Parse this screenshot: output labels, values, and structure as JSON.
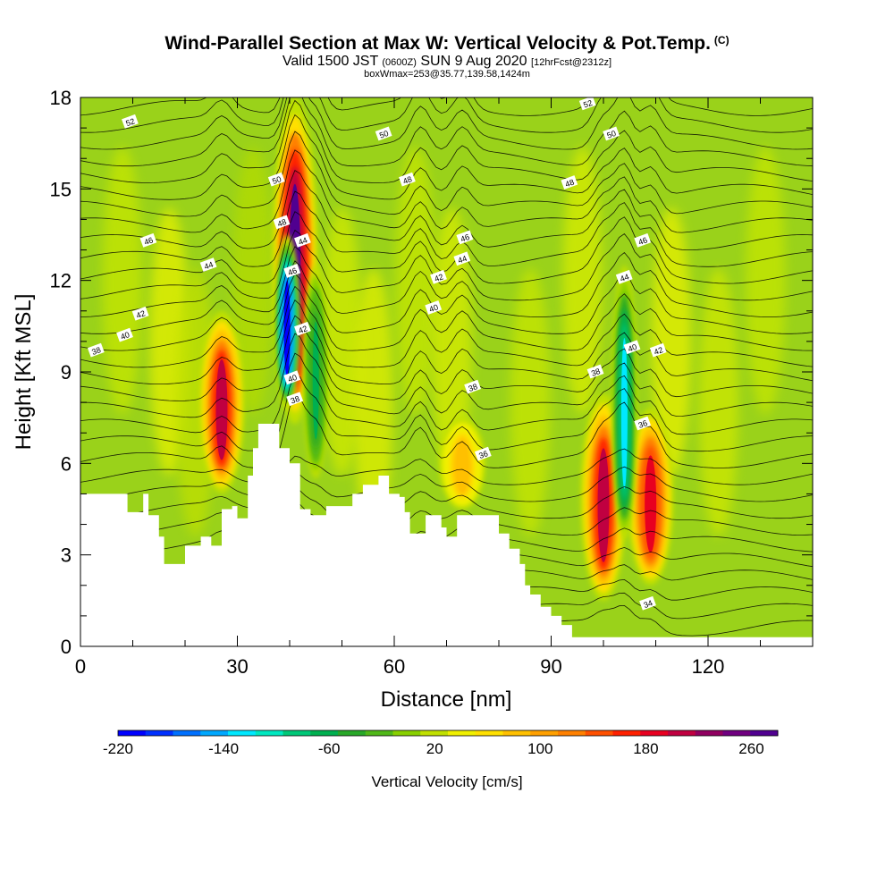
{
  "title": {
    "line1": "Wind-Parallel Section at Max W: Vertical Velocity & Pot.Temp.",
    "line1_mark": "(C)",
    "line2_pre": "Valid 1500 JST",
    "line2_small1": "(0600Z)",
    "line2_mid": "SUN 9 Aug 2020",
    "line2_small2": "[12hrFcst@2312z]",
    "line3": "boxWmax=253@35.77,139.58,1424m"
  },
  "chart_data": {
    "type": "heatmap",
    "xlabel": "Distance [nm]",
    "ylabel": "Height [Kft MSL]",
    "xlim": [
      0,
      140
    ],
    "ylim": [
      0,
      18
    ],
    "x_ticks": [
      "0",
      "30",
      "60",
      "90",
      "120"
    ],
    "y_ticks": [
      "0",
      "3",
      "6",
      "9",
      "12",
      "15",
      "18"
    ],
    "colorbar": {
      "title": "Vertical Velocity [cm/s]",
      "range": [
        -220,
        280
      ],
      "labels": [
        "-220",
        "-140",
        "-60",
        "20",
        "100",
        "180",
        "260"
      ],
      "colors": [
        "#0000ff",
        "#0030ff",
        "#0070ff",
        "#00a8ff",
        "#00e8ff",
        "#00e8c0",
        "#00c878",
        "#00b050",
        "#28a828",
        "#50b818",
        "#88d000",
        "#c0e000",
        "#f0f000",
        "#ffe000",
        "#ffc000",
        "#ffa000",
        "#ff8000",
        "#ff5000",
        "#ff2000",
        "#e80020",
        "#c00040",
        "#900060",
        "#700080",
        "#500090"
      ]
    },
    "updrafts": [
      {
        "x": 27,
        "y_bottom": 5,
        "y_top": 11,
        "peak_cm_s": 200
      },
      {
        "x": 41,
        "y_bottom": 7.3,
        "y_top": 18,
        "peak_cm_s": 260
      },
      {
        "x": 73,
        "y_bottom": 4.5,
        "y_top": 7.5,
        "peak_cm_s": 90
      },
      {
        "x": 100,
        "y_bottom": 1.5,
        "y_top": 8.3,
        "peak_cm_s": 200
      },
      {
        "x": 109,
        "y_bottom": 2,
        "y_top": 7.8,
        "peak_cm_s": 180
      }
    ],
    "downdrafts": [
      {
        "x": 39.5,
        "y_bottom": 7.8,
        "y_top": 13.5,
        "peak_cm_s": -220
      },
      {
        "x": 104,
        "y_bottom": 3.5,
        "y_top": 12.5,
        "peak_cm_s": -120
      },
      {
        "x": 45,
        "y_bottom": 5.5,
        "y_top": 12.5,
        "peak_cm_s": -60
      }
    ],
    "terrain_height_kft": [
      [
        0,
        5
      ],
      [
        8,
        5
      ],
      [
        9,
        4.4
      ],
      [
        12,
        5
      ],
      [
        13,
        4.3
      ],
      [
        15,
        3.6
      ],
      [
        16,
        2.7
      ],
      [
        19,
        2.7
      ],
      [
        20,
        3.3
      ],
      [
        23,
        3.6
      ],
      [
        25,
        3.3
      ],
      [
        27,
        4.5
      ],
      [
        29,
        4.6
      ],
      [
        30,
        4.2
      ],
      [
        32,
        5.6
      ],
      [
        33,
        6.5
      ],
      [
        34,
        7.3
      ],
      [
        37,
        7.3
      ],
      [
        38,
        6.5
      ],
      [
        40,
        6
      ],
      [
        42,
        4.5
      ],
      [
        43,
        4.5
      ],
      [
        44,
        4.3
      ],
      [
        47,
        4.6
      ],
      [
        50,
        4.6
      ],
      [
        52,
        5
      ],
      [
        54,
        5.3
      ],
      [
        57,
        5.6
      ],
      [
        59,
        5
      ],
      [
        61,
        4.9
      ],
      [
        62,
        4.4
      ],
      [
        63,
        3.7
      ],
      [
        64,
        3.7
      ],
      [
        66,
        4.3
      ],
      [
        68,
        4.3
      ],
      [
        69,
        3.9
      ],
      [
        70,
        3.6
      ],
      [
        71,
        3.6
      ],
      [
        72,
        4.3
      ],
      [
        77,
        4.3
      ],
      [
        80,
        3.7
      ],
      [
        82,
        3.2
      ],
      [
        84,
        2.7
      ],
      [
        85,
        2
      ],
      [
        86,
        1.7
      ],
      [
        88,
        1.3
      ],
      [
        90,
        1
      ],
      [
        92,
        0.7
      ],
      [
        94,
        0.3
      ],
      [
        140,
        0.3
      ]
    ],
    "theta_contour_labels": [
      {
        "text": "52",
        "x": 9.5,
        "y": 17.2
      },
      {
        "text": "50",
        "x": 37.5,
        "y": 15.3
      },
      {
        "text": "48",
        "x": 38.5,
        "y": 13.9
      },
      {
        "text": "46",
        "x": 13,
        "y": 13.3
      },
      {
        "text": "44",
        "x": 24.5,
        "y": 12.5
      },
      {
        "text": "44",
        "x": 42.5,
        "y": 13.3
      },
      {
        "text": "46",
        "x": 40.5,
        "y": 12.3
      },
      {
        "text": "42",
        "x": 11.5,
        "y": 10.9
      },
      {
        "text": "40",
        "x": 8.5,
        "y": 10.2
      },
      {
        "text": "38",
        "x": 3,
        "y": 9.7
      },
      {
        "text": "42",
        "x": 42.5,
        "y": 10.4
      },
      {
        "text": "40",
        "x": 40.5,
        "y": 8.8
      },
      {
        "text": "38",
        "x": 41,
        "y": 8.1
      },
      {
        "text": "50",
        "x": 58,
        "y": 16.8
      },
      {
        "text": "48",
        "x": 62.5,
        "y": 15.3
      },
      {
        "text": "46",
        "x": 73.5,
        "y": 13.4
      },
      {
        "text": "44",
        "x": 73,
        "y": 12.7
      },
      {
        "text": "42",
        "x": 68.5,
        "y": 12.1
      },
      {
        "text": "40",
        "x": 67.5,
        "y": 11.1
      },
      {
        "text": "38",
        "x": 75,
        "y": 8.5
      },
      {
        "text": "36",
        "x": 77,
        "y": 6.3
      },
      {
        "text": "52",
        "x": 97,
        "y": 17.8
      },
      {
        "text": "50",
        "x": 101.5,
        "y": 16.8
      },
      {
        "text": "48",
        "x": 93.5,
        "y": 15.2
      },
      {
        "text": "46",
        "x": 107.5,
        "y": 13.3
      },
      {
        "text": "44",
        "x": 104,
        "y": 12.1
      },
      {
        "text": "40",
        "x": 105.5,
        "y": 9.8
      },
      {
        "text": "42",
        "x": 110.5,
        "y": 9.7
      },
      {
        "text": "38",
        "x": 98.5,
        "y": 9
      },
      {
        "text": "36",
        "x": 107.5,
        "y": 7.3
      },
      {
        "text": "34",
        "x": 108.5,
        "y": 1.4
      }
    ]
  }
}
